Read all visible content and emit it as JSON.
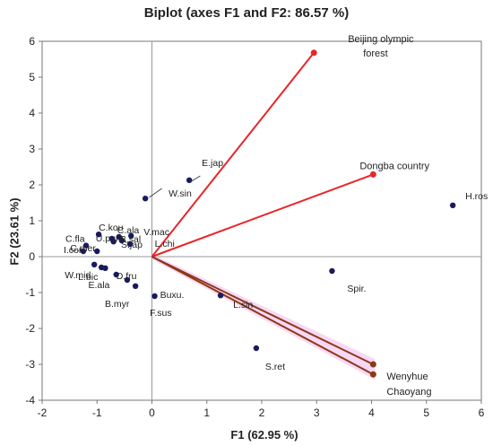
{
  "chart_data": {
    "type": "scatter",
    "title": "Biplot (axes F1 and F2: 86.57 %)",
    "xlabel": "F1 (62.95 %)",
    "ylabel": "F2 (23.61 %)",
    "xlim": [
      -2,
      6
    ],
    "ylim": [
      -4,
      6
    ],
    "x_ticks": [
      "-2",
      "-1",
      "0",
      "1",
      "2",
      "3",
      "4",
      "5",
      "6"
    ],
    "y_ticks": [
      "-4",
      "-3",
      "-2",
      "-1",
      "0",
      "1",
      "2",
      "3",
      "4",
      "5",
      "6"
    ],
    "grid": false,
    "points": [
      {
        "label": "H.ros",
        "x": 5.48,
        "y": 1.43
      },
      {
        "label": "E.jap",
        "x": 0.68,
        "y": 2.13
      },
      {
        "label": "W.sin",
        "x": -0.12,
        "y": 1.62
      },
      {
        "label": "C.kou",
        "x": -0.97,
        "y": 0.62
      },
      {
        "label": "C.fla",
        "x": -1.2,
        "y": 0.31
      },
      {
        "label": "C.ala",
        "x": -0.6,
        "y": 0.55
      },
      {
        "label": "V.mac",
        "x": -0.38,
        "y": 0.58
      },
      {
        "label": "L.chi",
        "x": -0.7,
        "y": 0.42
      },
      {
        "label": "U.pum",
        "x": -0.73,
        "y": 0.5
      },
      {
        "label": "B.sal",
        "x": -0.55,
        "y": 0.45
      },
      {
        "label": "S.jap",
        "x": -0.4,
        "y": 0.35
      },
      {
        "label": "I.cor",
        "x": -1.25,
        "y": 0.15
      },
      {
        "label": "C.mer",
        "x": -1.0,
        "y": 0.15
      },
      {
        "label": "W.mid",
        "x": -1.05,
        "y": -0.22
      },
      {
        "label": "L.bic",
        "x": -0.92,
        "y": -0.3
      },
      {
        "label": "E.ala",
        "x": -0.85,
        "y": -0.32
      },
      {
        "label": "D.fru",
        "x": -0.65,
        "y": -0.5
      },
      {
        "label": "B.myr",
        "x": -0.45,
        "y": -0.65
      },
      {
        "label": "F.sus",
        "x": -0.3,
        "y": -0.82
      },
      {
        "label": "Buxu.",
        "x": 0.05,
        "y": -1.1
      },
      {
        "label": "L.sin",
        "x": 1.25,
        "y": -1.08
      },
      {
        "label": "Spir.",
        "x": 3.28,
        "y": -0.4
      },
      {
        "label": "S.ret",
        "x": 1.9,
        "y": -2.55
      }
    ],
    "vectors": [
      {
        "label": "Beijing olympic forest",
        "x": 2.95,
        "y": 5.68,
        "color": "#e8262a"
      },
      {
        "label": "Dongba country",
        "x": 4.03,
        "y": 2.29,
        "color": "#e8262a"
      },
      {
        "label": "Wenyhue",
        "x": 4.03,
        "y": -3.0,
        "color": "#8b3a16"
      },
      {
        "label": "Chaoyang",
        "x": 4.03,
        "y": -3.28,
        "color": "#8b3a16"
      }
    ],
    "colors": {
      "points": "#1a1a5e",
      "axes": "#999999",
      "vector_red": "#e8262a",
      "vector_brown": "#8b3a16",
      "highlight": "#f2b8f0"
    }
  }
}
